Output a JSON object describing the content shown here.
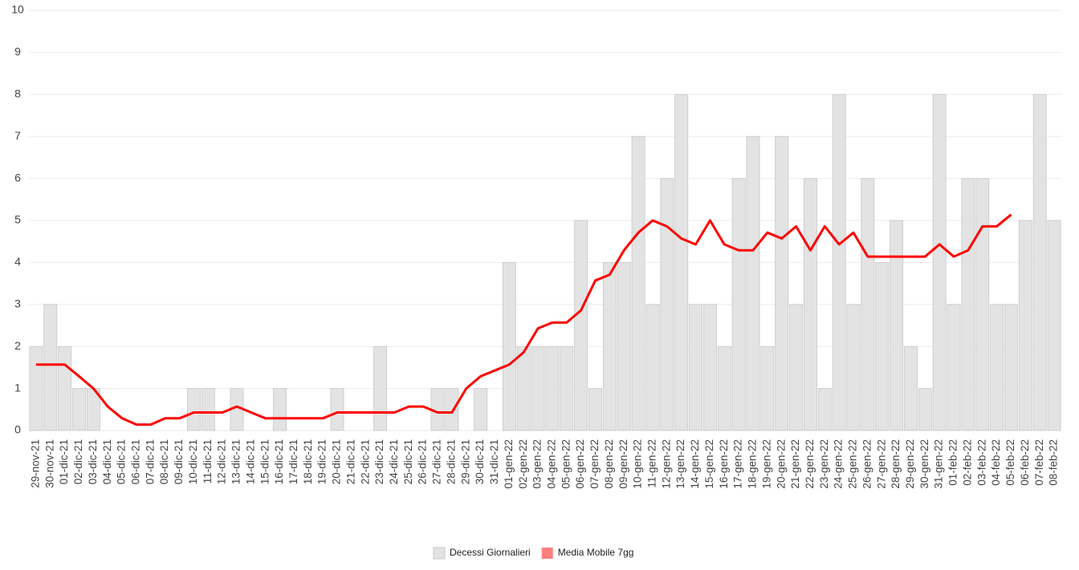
{
  "chart_data": {
    "type": "bar",
    "categories": [
      "29-nov-21",
      "30-nov-21",
      "01-dic-21",
      "02-dic-21",
      "03-dic-21",
      "04-dic-21",
      "05-dic-21",
      "06-dic-21",
      "07-dic-21",
      "08-dic-21",
      "09-dic-21",
      "10-dic-21",
      "11-dic-21",
      "12-dic-21",
      "13-dic-21",
      "14-dic-21",
      "15-dic-21",
      "16-dic-21",
      "17-dic-21",
      "18-dic-21",
      "19-dic-21",
      "20-dic-21",
      "21-dic-21",
      "22-dic-21",
      "23-dic-21",
      "24-dic-21",
      "25-dic-21",
      "26-dic-21",
      "27-dic-21",
      "28-dic-21",
      "29-dic-21",
      "30-dic-21",
      "31-dic-21",
      "01-gen-22",
      "02-gen-22",
      "03-gen-22",
      "04-gen-22",
      "05-gen-22",
      "06-gen-22",
      "07-gen-22",
      "08-gen-22",
      "09-gen-22",
      "10-gen-22",
      "11-gen-22",
      "12-gen-22",
      "13-gen-22",
      "14-gen-22",
      "15-gen-22",
      "16-gen-22",
      "17-gen-22",
      "18-gen-22",
      "19-gen-22",
      "20-gen-22",
      "21-gen-22",
      "22-gen-22",
      "23-gen-22",
      "24-gen-22",
      "25-gen-22",
      "26-gen-22",
      "27-gen-22",
      "28-gen-22",
      "29-gen-22",
      "30-gen-22",
      "31-gen-22",
      "01-feb-22",
      "02-feb-22",
      "03-feb-22",
      "04-feb-22",
      "05-feb-22",
      "06-feb-22",
      "07-feb-22",
      "08-feb-22"
    ],
    "series": [
      {
        "name": "Decessi Giornalieri",
        "type": "bar",
        "color": "#e3e3e3",
        "values": [
          2,
          3,
          2,
          1,
          1,
          0,
          0,
          0,
          0,
          0,
          0,
          1,
          1,
          0,
          1,
          0,
          0,
          1,
          0,
          0,
          0,
          1,
          0,
          0,
          2,
          0,
          0,
          0,
          1,
          1,
          0,
          1,
          0,
          4,
          2,
          2,
          2,
          2,
          5,
          1,
          4,
          4,
          7,
          3,
          6,
          8,
          3,
          3,
          2,
          6,
          7,
          2,
          7,
          3,
          6,
          1,
          8,
          3,
          6,
          4,
          5,
          2,
          1,
          8,
          3,
          6,
          6,
          3,
          3,
          5,
          8,
          5
        ]
      },
      {
        "name": "Media Mobile 7gg",
        "type": "line",
        "color": "#ff0000",
        "values": [
          1.57,
          1.57,
          1.57,
          1.29,
          1.0,
          0.57,
          0.29,
          0.14,
          0.14,
          0.29,
          0.29,
          0.43,
          0.43,
          0.43,
          0.57,
          0.43,
          0.29,
          0.29,
          0.29,
          0.29,
          0.29,
          0.43,
          0.43,
          0.43,
          0.43,
          0.43,
          0.57,
          0.57,
          0.43,
          0.43,
          1.0,
          1.29,
          1.43,
          1.57,
          1.86,
          2.43,
          2.57,
          2.57,
          2.86,
          3.57,
          3.71,
          4.29,
          4.71,
          5.0,
          4.86,
          4.57,
          4.43,
          5.0,
          4.43,
          4.29,
          4.29,
          4.71,
          4.57,
          4.86,
          4.29,
          4.86,
          4.43,
          4.71,
          4.14,
          4.14,
          4.14,
          4.14,
          4.14,
          4.43,
          4.14,
          4.29,
          4.86,
          4.86,
          5.14,
          null,
          null,
          null
        ]
      }
    ],
    "ylim": [
      0,
      10
    ],
    "yticks": [
      0,
      1,
      2,
      3,
      4,
      5,
      6,
      7,
      8,
      9,
      10
    ],
    "grid": true,
    "legend": "bottom"
  }
}
